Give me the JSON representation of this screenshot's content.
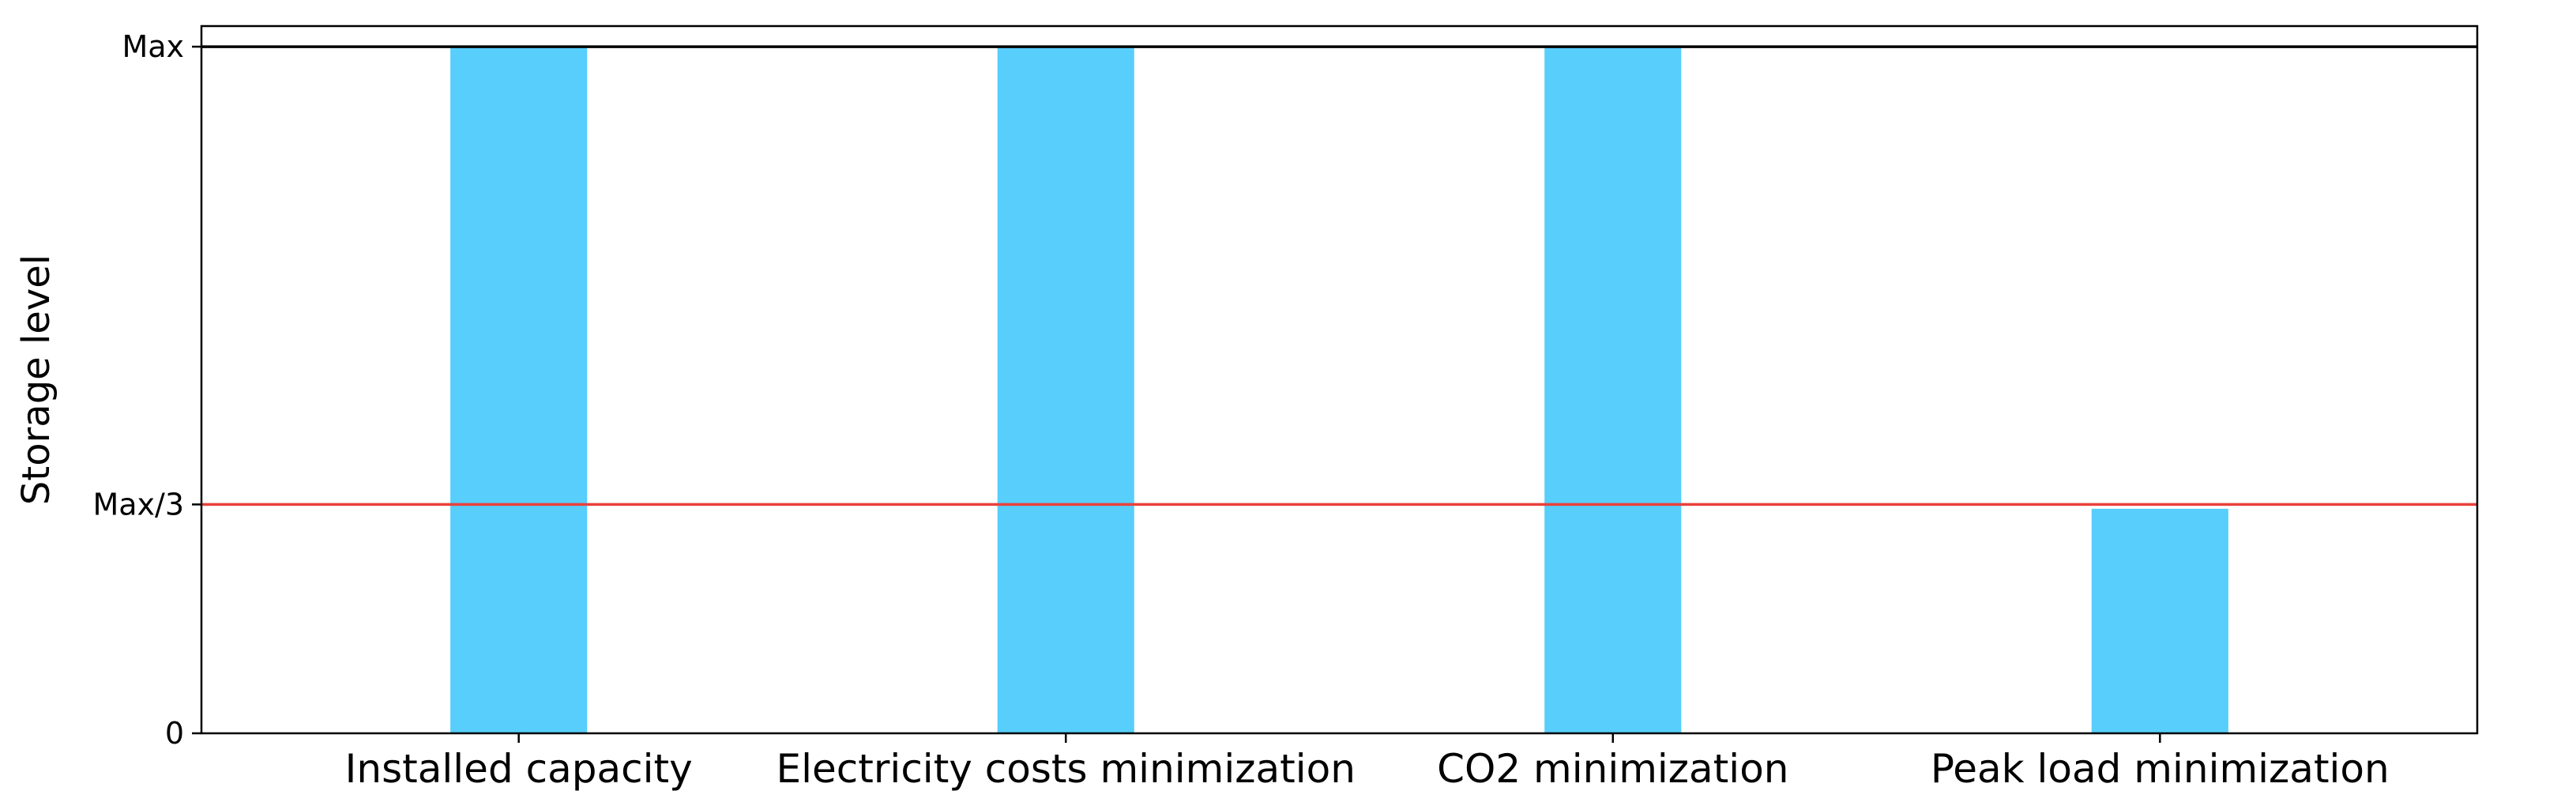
{
  "chart_data": {
    "type": "bar",
    "title": "",
    "xlabel": "",
    "ylabel": "Storage level",
    "categories": [
      "Installed capacity",
      "Electricity costs minimization",
      "CO2 minimization",
      "Peak load minimization"
    ],
    "values": [
      1.0,
      1.0,
      1.0,
      0.327
    ],
    "ylim": [
      0,
      1.03
    ],
    "yticks": [
      {
        "value": 0,
        "label": "0"
      },
      {
        "value": 0.3333,
        "label": "Max/3"
      },
      {
        "value": 1.0,
        "label": "Max"
      }
    ],
    "reference_lines": [
      {
        "value": 1.0,
        "color": "#000000"
      },
      {
        "value": 0.3333,
        "color": "#e8413c"
      }
    ],
    "bar_color": "#57cefc",
    "grid": false,
    "legend": "none"
  }
}
